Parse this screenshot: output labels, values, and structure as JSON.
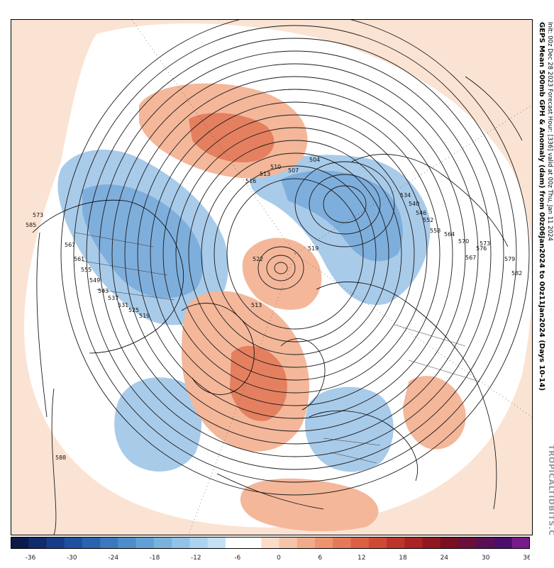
{
  "title_line1": "GEPS Mean 500mb GPH & Anomaly (dam) from 00z06Jan2024 to 00z11Jan2024 (Days 10-14)",
  "title_line2": "Init: 00z Dec 28 2023   Forecast Hour: [336]   valid at 00z Thu, Jan 11 2024",
  "watermark": "TROPICALTIDBITS.COM",
  "colors": {
    "neg_strong": "#4a86c8",
    "neg_mid": "#7eaedc",
    "neg_light": "#a9cbea",
    "pos_light": "#fbe3d3",
    "pos_mid": "#f4b79a",
    "pos_strong": "#e4805f",
    "pos_max": "#d4583f"
  },
  "contour_labels": [
    "585",
    "573",
    "567",
    "561",
    "555",
    "549",
    "543",
    "537",
    "531",
    "525",
    "519",
    "516",
    "513",
    "510",
    "507",
    "504",
    "522",
    "519",
    "513",
    "558",
    "552",
    "546",
    "540",
    "534",
    "570",
    "564",
    "576",
    "582",
    "588",
    "579",
    "573",
    "567"
  ],
  "colorbar": {
    "colors": [
      "#0c1a4a",
      "#102a6a",
      "#173d8a",
      "#1f4f9e",
      "#2c63ae",
      "#3c78bd",
      "#4f8dca",
      "#63a0d5",
      "#7ab2de",
      "#92c2e6",
      "#abd2ee",
      "#c5e0f4",
      "#ffffff",
      "#ffffff",
      "#fbdcc8",
      "#f6c4a9",
      "#f1ab8b",
      "#ec936f",
      "#e47a57",
      "#da6144",
      "#cd4a36",
      "#bd342b",
      "#a82425",
      "#911721",
      "#7a0f22",
      "#6a0f3a",
      "#5a0f55",
      "#4a0f6a",
      "#7a1a8a"
    ],
    "tick_labels": [
      "-36",
      "-30",
      "-24",
      "-18",
      "-12",
      "-6",
      "0",
      "6",
      "12",
      "18",
      "24",
      "30",
      "36"
    ]
  }
}
